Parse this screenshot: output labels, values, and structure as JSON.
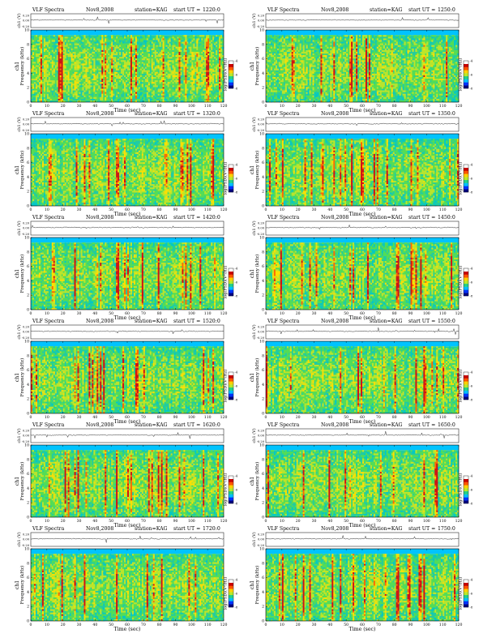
{
  "figure": {
    "header": "VLF Spectra",
    "date": "Nov8,2008",
    "station": "station=KAG",
    "start_prefix": "start  UT  ="
  },
  "common_axes": {
    "time_label": "Time  (sec)",
    "freq_label": "Frequency  (kHz)",
    "channel_label": "ch1",
    "signal_label": "ch1 (V)",
    "signal_ticks": [
      "0.20",
      "0.00",
      "-0.20"
    ],
    "colorbar_label": "log(PSD)(V²/Hz)",
    "colorbar_ticks": [
      "-4",
      "-6",
      "-8"
    ],
    "colorbar_colors": [
      "#000080",
      "#0033ff",
      "#00bfff",
      "#22d08a",
      "#b8e82a",
      "#ffd000",
      "#ff5500",
      "#c80000",
      "#ffffff"
    ],
    "spectrogram_colors": [
      "#00c8c8",
      "#22cca0",
      "#55dd55",
      "#bde52a",
      "#ffe000",
      "#ff6a00",
      "#d41010"
    ]
  },
  "chart_data": [
    {
      "type": "heatmap",
      "start_ut": "1220:0",
      "xlim": [
        0,
        120
      ],
      "ylim": [
        0,
        10
      ],
      "xticks": [
        0,
        10,
        20,
        30,
        40,
        50,
        60,
        70,
        80,
        90,
        100,
        110,
        120
      ],
      "yticks": [
        0,
        2,
        4,
        6,
        8,
        10
      ],
      "freq_cutoff_khz": 9.3,
      "seed": 3
    },
    {
      "type": "heatmap",
      "start_ut": "1250:0",
      "xlim": [
        0,
        120
      ],
      "ylim": [
        0,
        10
      ],
      "xticks": [
        0,
        10,
        20,
        30,
        40,
        50,
        60,
        70,
        80,
        90,
        100,
        110,
        120
      ],
      "yticks": [
        0,
        2,
        4,
        6,
        8,
        10
      ],
      "freq_cutoff_khz": 9.3,
      "seed": 7
    },
    {
      "type": "heatmap",
      "start_ut": "1320:0",
      "xlim": [
        0,
        120
      ],
      "ylim": [
        0,
        10
      ],
      "xticks": [
        0,
        10,
        20,
        30,
        40,
        50,
        60,
        70,
        80,
        90,
        100,
        110,
        120
      ],
      "yticks": [
        0,
        2,
        4,
        6,
        8,
        10
      ],
      "freq_cutoff_khz": 9.3,
      "seed": 11
    },
    {
      "type": "heatmap",
      "start_ut": "1350:0",
      "xlim": [
        0,
        120
      ],
      "ylim": [
        0,
        10
      ],
      "xticks": [
        0,
        10,
        20,
        30,
        40,
        50,
        60,
        70,
        80,
        90,
        100,
        110,
        120
      ],
      "yticks": [
        0,
        2,
        4,
        6,
        8,
        10
      ],
      "freq_cutoff_khz": 9.3,
      "seed": 13
    },
    {
      "type": "heatmap",
      "start_ut": "1420:0",
      "xlim": [
        0,
        120
      ],
      "ylim": [
        0,
        10
      ],
      "xticks": [
        0,
        10,
        20,
        30,
        40,
        50,
        60,
        70,
        80,
        90,
        100,
        110,
        120
      ],
      "yticks": [
        0,
        2,
        4,
        6,
        8,
        10
      ],
      "freq_cutoff_khz": 9.3,
      "seed": 17
    },
    {
      "type": "heatmap",
      "start_ut": "1450:0",
      "xlim": [
        0,
        120
      ],
      "ylim": [
        0,
        10
      ],
      "xticks": [
        0,
        10,
        20,
        30,
        40,
        50,
        60,
        70,
        80,
        90,
        100,
        110,
        120
      ],
      "yticks": [
        0,
        2,
        4,
        6,
        8,
        10
      ],
      "freq_cutoff_khz": 9.3,
      "seed": 19
    },
    {
      "type": "heatmap",
      "start_ut": "1520:0",
      "xlim": [
        0,
        120
      ],
      "ylim": [
        0,
        10
      ],
      "xticks": [
        0,
        10,
        20,
        30,
        40,
        50,
        60,
        70,
        80,
        90,
        100,
        110,
        120
      ],
      "yticks": [
        0,
        2,
        4,
        6,
        8,
        10
      ],
      "freq_cutoff_khz": 9.3,
      "seed": 23
    },
    {
      "type": "heatmap",
      "start_ut": "1550:0",
      "xlim": [
        0,
        120
      ],
      "ylim": [
        0,
        10
      ],
      "xticks": [
        0,
        10,
        20,
        30,
        40,
        50,
        60,
        70,
        80,
        90,
        100,
        110,
        120
      ],
      "yticks": [
        0,
        2,
        4,
        6,
        8,
        10
      ],
      "freq_cutoff_khz": 9.3,
      "seed": 29
    },
    {
      "type": "heatmap",
      "start_ut": "1620:0",
      "xlim": [
        0,
        120
      ],
      "ylim": [
        0,
        10
      ],
      "xticks": [
        0,
        10,
        20,
        30,
        40,
        50,
        60,
        70,
        80,
        90,
        100,
        110,
        120
      ],
      "yticks": [
        0,
        2,
        4,
        6,
        8,
        10
      ],
      "freq_cutoff_khz": 9.3,
      "seed": 31
    },
    {
      "type": "heatmap",
      "start_ut": "1650:0",
      "xlim": [
        0,
        120
      ],
      "ylim": [
        0,
        10
      ],
      "xticks": [
        0,
        10,
        20,
        30,
        40,
        50,
        60,
        70,
        80,
        90,
        100,
        110,
        120
      ],
      "yticks": [
        0,
        2,
        4,
        6,
        8,
        10
      ],
      "freq_cutoff_khz": 9.3,
      "seed": 37
    },
    {
      "type": "heatmap",
      "start_ut": "1720:0",
      "xlim": [
        0,
        120
      ],
      "ylim": [
        0,
        10
      ],
      "xticks": [
        0,
        10,
        20,
        30,
        40,
        50,
        60,
        70,
        80,
        90,
        100,
        110,
        120
      ],
      "yticks": [
        0,
        2,
        4,
        6,
        8,
        10
      ],
      "freq_cutoff_khz": 9.3,
      "seed": 41
    },
    {
      "type": "heatmap",
      "start_ut": "1750:0",
      "xlim": [
        0,
        120
      ],
      "ylim": [
        0,
        10
      ],
      "xticks": [
        0,
        10,
        20,
        30,
        40,
        50,
        60,
        70,
        80,
        90,
        100,
        110,
        120
      ],
      "yticks": [
        0,
        2,
        4,
        6,
        8,
        10
      ],
      "freq_cutoff_khz": 9.3,
      "seed": 43
    }
  ]
}
